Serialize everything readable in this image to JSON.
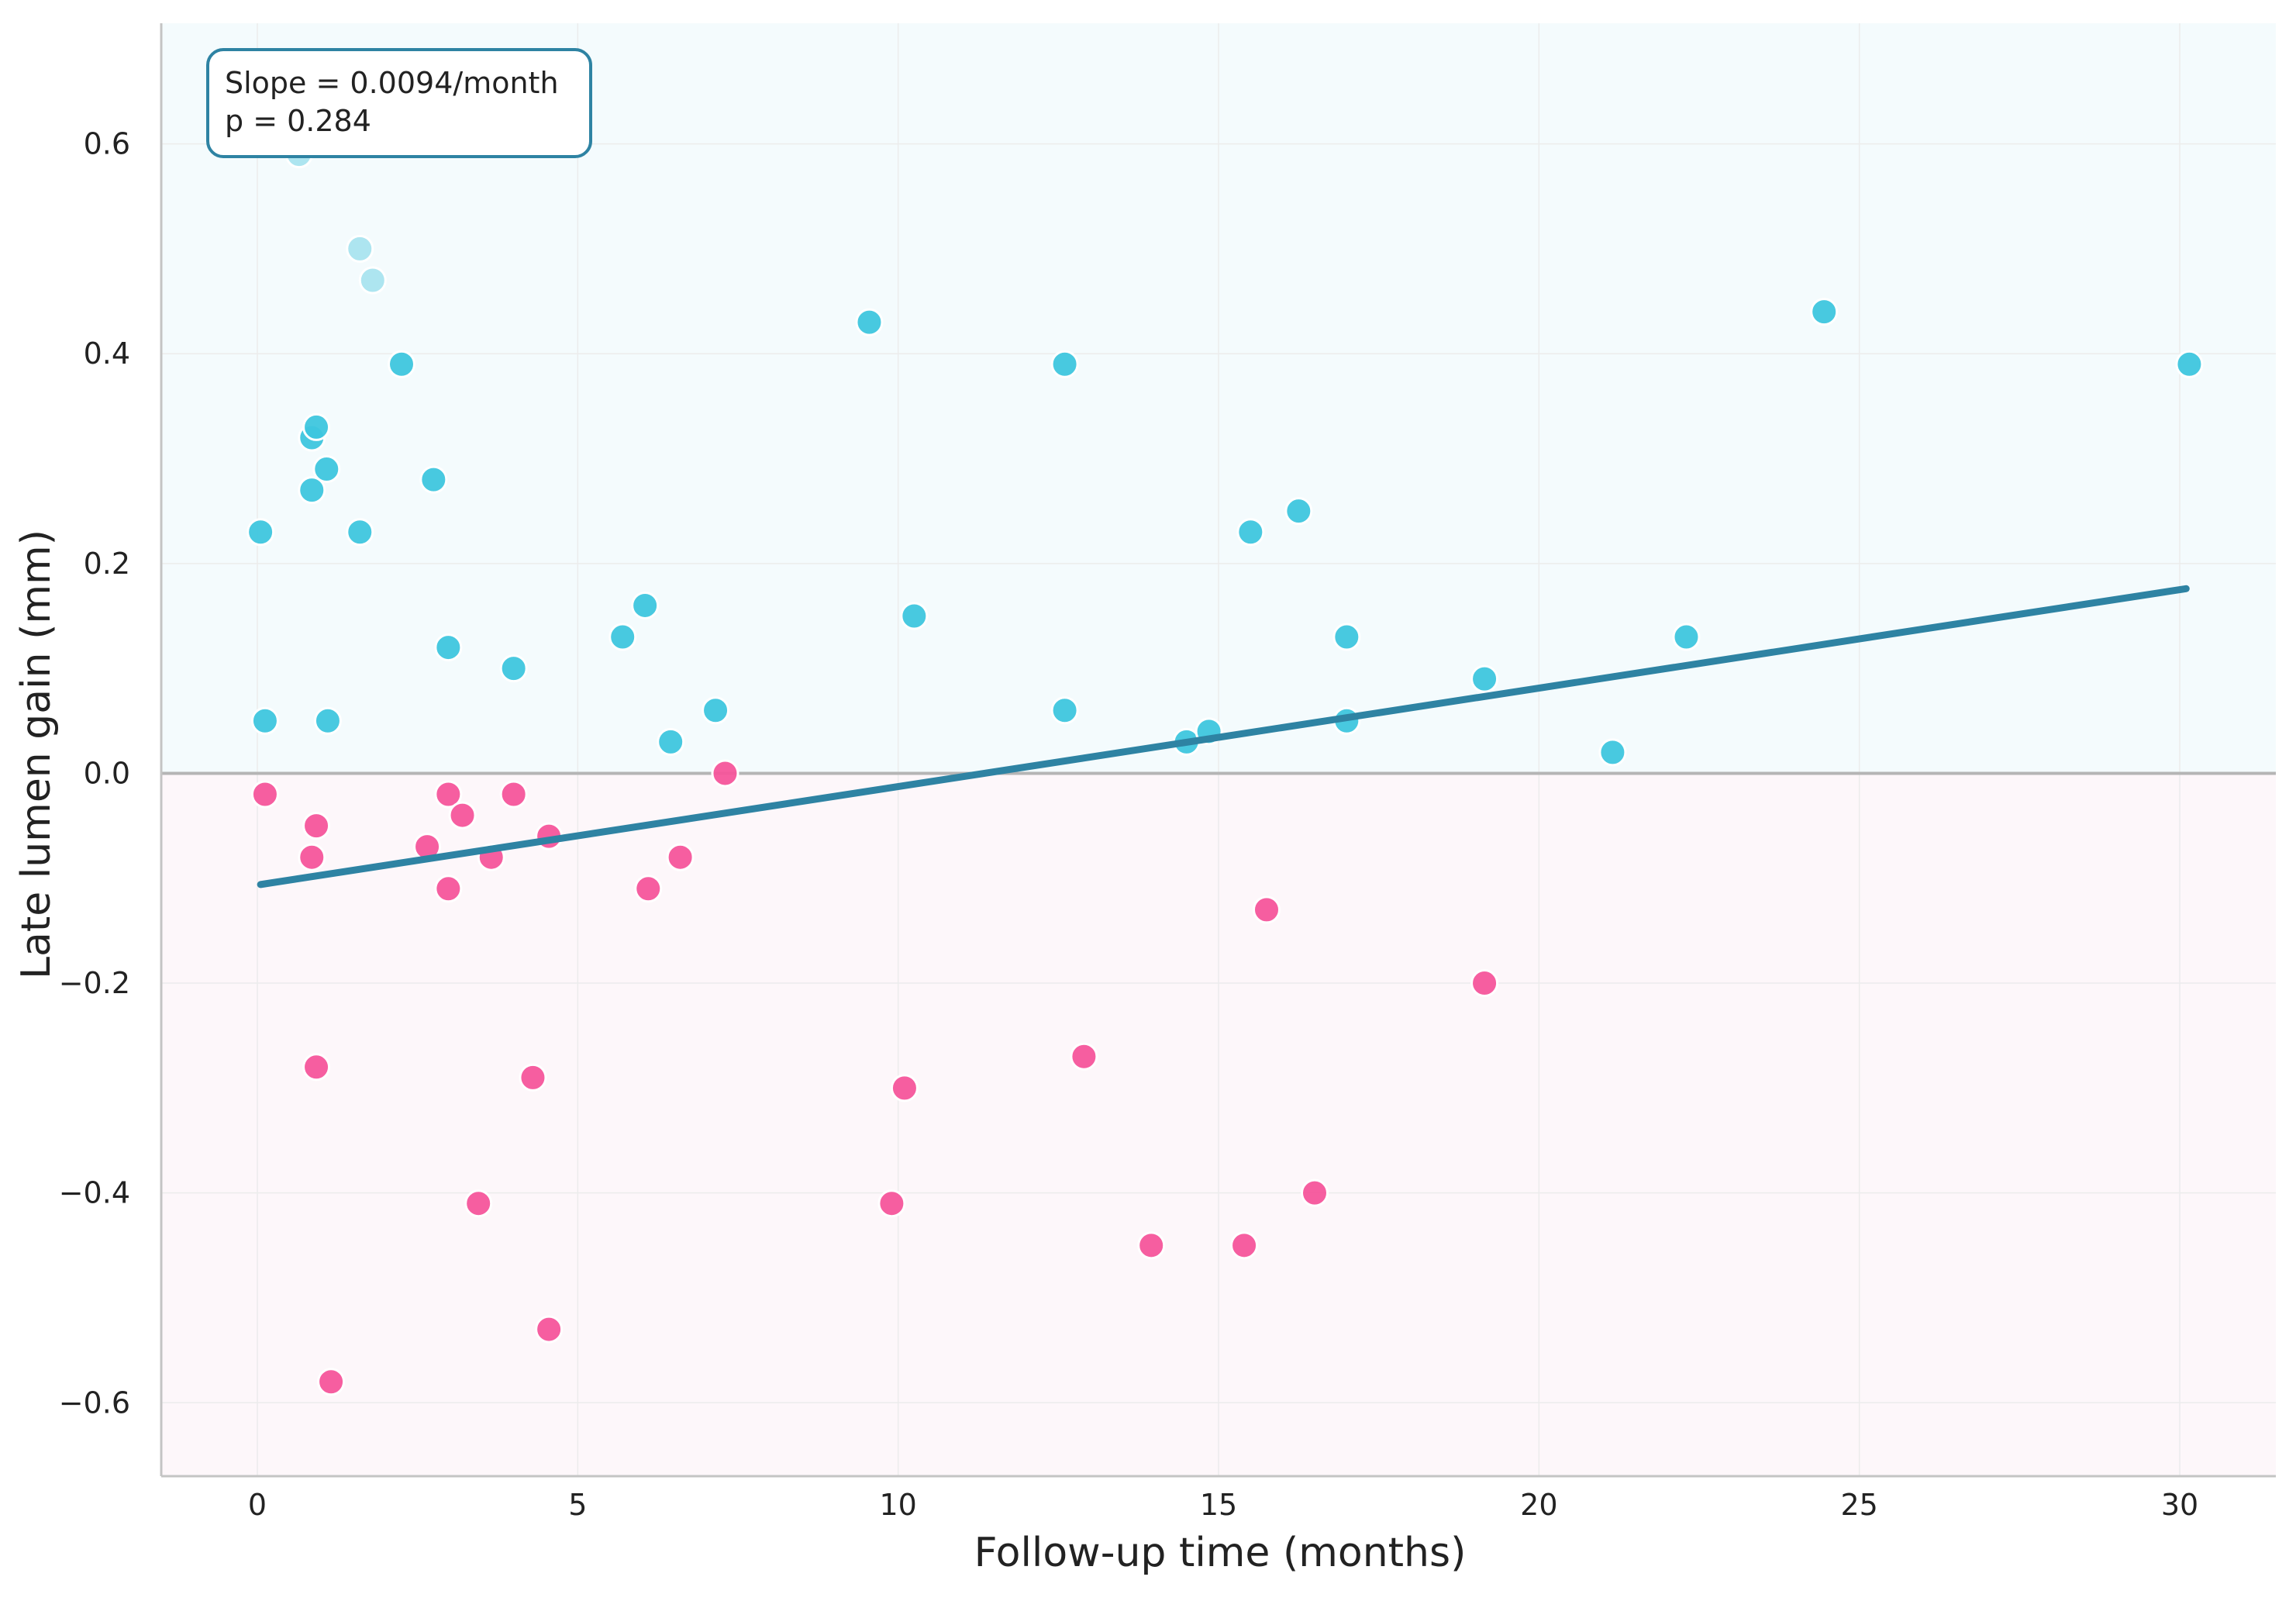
{
  "chart_data": {
    "type": "scatter",
    "title": "",
    "xlabel": "Follow-up time (months)",
    "ylabel": "Late lumen gain (mm)",
    "xlim": [
      -1.5,
      31.5
    ],
    "ylim": [
      -0.67,
      0.715
    ],
    "xticks": [
      0,
      5,
      10,
      15,
      20,
      25,
      30
    ],
    "yticks": [
      -0.6,
      -0.4,
      -0.2,
      0.0,
      0.2,
      0.4,
      0.6
    ],
    "ytick_labels": [
      "−0.6",
      "−0.4",
      "−0.2",
      "0.0",
      "0.2",
      "0.4",
      "0.6"
    ],
    "grid": true,
    "colors": {
      "positive": "#3EC6DE",
      "positive_faded": "#A9E4EF",
      "negative": "#F5559B",
      "trend": "#2E83A3",
      "positive_band": "#F4FBFD",
      "negative_band": "#FDF7FA",
      "zero_line": "#B5B5B5",
      "annotation_border": "#2E83A3"
    },
    "annotation": {
      "line1": "Slope = 0.0094/month",
      "line2": "p = 0.284",
      "position": "top-left"
    },
    "trend_line": {
      "x": [
        0.05,
        30.1
      ],
      "y": [
        -0.106,
        0.176
      ]
    },
    "series": [
      {
        "group": "positive",
        "x": [
          0.05,
          0.12,
          0.85,
          0.85,
          0.92,
          1.08,
          1.1,
          1.6,
          2.25,
          2.75,
          2.98,
          4.0,
          5.7,
          6.05,
          6.45,
          7.15,
          9.55,
          10.25,
          12.6,
          12.6,
          14.5,
          14.85,
          15.5,
          16.25,
          17.0,
          17.0,
          19.15,
          21.15,
          22.3,
          24.45,
          30.15
        ],
        "y": [
          0.23,
          0.05,
          0.32,
          0.27,
          0.33,
          0.29,
          0.05,
          0.23,
          0.39,
          0.28,
          0.12,
          0.1,
          0.13,
          0.16,
          0.03,
          0.06,
          0.43,
          0.15,
          0.39,
          0.06,
          0.03,
          0.04,
          0.23,
          0.25,
          0.13,
          0.05,
          0.09,
          0.02,
          0.13,
          0.44,
          0.39
        ]
      },
      {
        "group": "positive_faded",
        "x": [
          0.65,
          1.6,
          1.8
        ],
        "y": [
          0.59,
          0.5,
          0.47
        ]
      },
      {
        "group": "negative",
        "x": [
          0.12,
          0.85,
          0.92,
          0.92,
          1.15,
          2.65,
          2.98,
          2.98,
          3.2,
          3.45,
          3.65,
          4.0,
          4.3,
          4.55,
          4.55,
          6.1,
          6.6,
          7.3,
          9.9,
          10.1,
          12.9,
          13.95,
          15.4,
          15.75,
          16.5,
          19.15
        ],
        "y": [
          -0.02,
          -0.08,
          -0.05,
          -0.28,
          -0.58,
          -0.07,
          -0.02,
          -0.11,
          -0.04,
          -0.41,
          -0.08,
          -0.02,
          -0.29,
          -0.06,
          -0.53,
          -0.11,
          -0.08,
          0.0,
          -0.41,
          -0.3,
          -0.27,
          -0.45,
          -0.45,
          -0.13,
          -0.4,
          -0.2
        ]
      }
    ]
  }
}
